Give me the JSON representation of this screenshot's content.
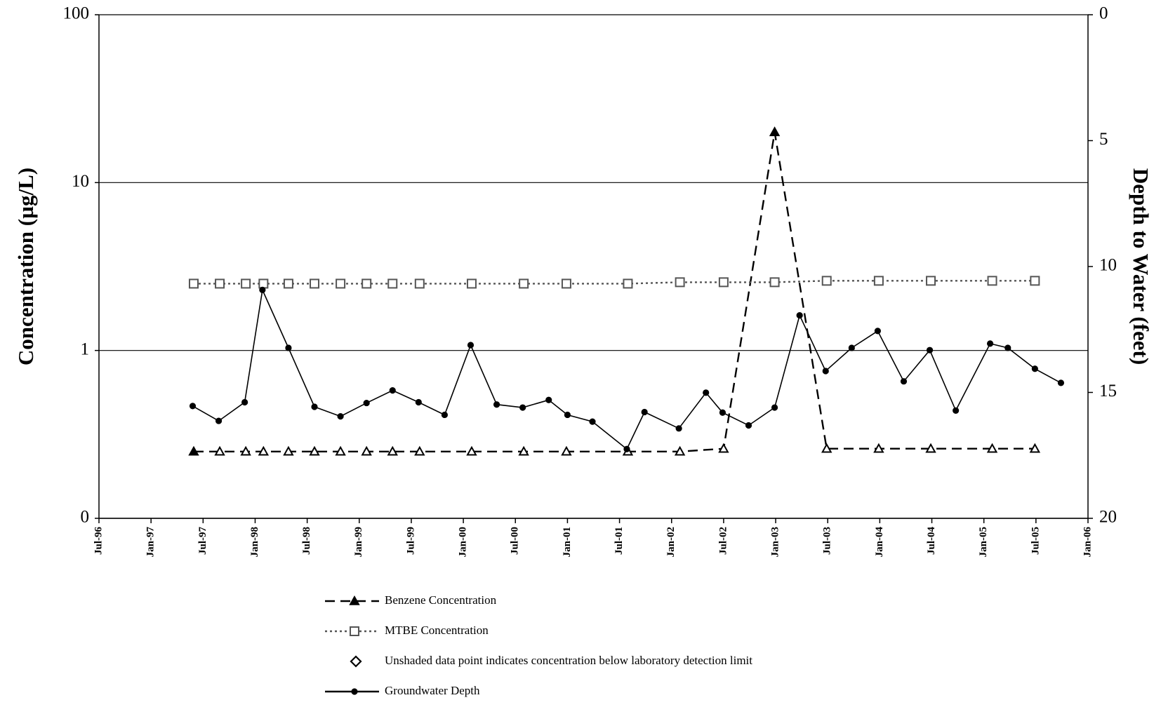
{
  "chart_data": {
    "type": "line",
    "y_label": "Concentration (µg/L)",
    "y2_label": "Depth to Water (feet)",
    "log_y": true,
    "grid": true,
    "ylim": [
      0.1,
      100
    ],
    "yticks": [
      {
        "value": 0.1,
        "label": "0"
      },
      1,
      10,
      100
    ],
    "y2lim": [
      20,
      0
    ],
    "y2ticks": [
      0,
      5,
      10,
      15,
      20
    ],
    "xlim": [
      1996.5,
      2006.0
    ],
    "xticks": [
      {
        "value": 1996.5,
        "label": "Jul-96"
      },
      {
        "value": 1997.0,
        "label": "Jan-97"
      },
      {
        "value": 1997.5,
        "label": "Jul-97"
      },
      {
        "value": 1998.0,
        "label": "Jan-98"
      },
      {
        "value": 1998.5,
        "label": "Jul-98"
      },
      {
        "value": 1999.0,
        "label": "Jan-99"
      },
      {
        "value": 1999.5,
        "label": "Jul-99"
      },
      {
        "value": 2000.0,
        "label": "Jan-00"
      },
      {
        "value": 2000.5,
        "label": "Jul-00"
      },
      {
        "value": 2001.0,
        "label": "Jan-01"
      },
      {
        "value": 2001.5,
        "label": "Jul-01"
      },
      {
        "value": 2002.0,
        "label": "Jan-02"
      },
      {
        "value": 2002.5,
        "label": "Jul-02"
      },
      {
        "value": 2003.0,
        "label": "Jan-03"
      },
      {
        "value": 2003.5,
        "label": "Jul-03"
      },
      {
        "value": 2004.0,
        "label": "Jan-04"
      },
      {
        "value": 2004.5,
        "label": "Jul-04"
      },
      {
        "value": 2005.0,
        "label": "Jan-05"
      },
      {
        "value": 2005.5,
        "label": "Jul-05"
      },
      {
        "value": 2006.0,
        "label": "Jan-06"
      }
    ],
    "note": "Unshaded data point indicates concentration below laboratory detection limit",
    "series": [
      {
        "name": "Benzene Concentration",
        "color": "#000000",
        "dash": "14 8",
        "marker": "triangle",
        "x": [
          1997.41,
          1997.66,
          1997.91,
          1998.08,
          1998.32,
          1998.57,
          1998.82,
          1999.07,
          1999.32,
          1999.58,
          2000.08,
          2000.58,
          2000.99,
          2001.58,
          2002.08,
          2002.5,
          2002.99,
          2003.49,
          2003.99,
          2004.49,
          2005.08,
          2005.49
        ],
        "values": [
          0.25,
          0.25,
          0.25,
          0.25,
          0.25,
          0.25,
          0.25,
          0.25,
          0.25,
          0.25,
          0.25,
          0.25,
          0.25,
          0.25,
          0.25,
          0.26,
          20,
          0.26,
          0.26,
          0.26,
          0.26,
          0.26
        ],
        "filled": [
          true,
          false,
          false,
          false,
          false,
          false,
          false,
          false,
          false,
          false,
          false,
          false,
          false,
          false,
          false,
          false,
          true,
          false,
          false,
          false,
          false,
          false
        ]
      },
      {
        "name": "MTBE Concentration",
        "color": "#555555",
        "dash": "3 4",
        "marker": "square",
        "x": [
          1997.41,
          1997.66,
          1997.91,
          1998.08,
          1998.32,
          1998.57,
          1998.82,
          1999.07,
          1999.32,
          1999.58,
          2000.08,
          2000.58,
          2000.99,
          2001.58,
          2002.08,
          2002.5,
          2002.99,
          2003.49,
          2003.99,
          2004.49,
          2005.08,
          2005.49
        ],
        "values": [
          2.5,
          2.5,
          2.5,
          2.5,
          2.5,
          2.5,
          2.5,
          2.5,
          2.5,
          2.5,
          2.5,
          2.5,
          2.5,
          2.5,
          2.55,
          2.55,
          2.55,
          2.6,
          2.6,
          2.6,
          2.6,
          2.6
        ],
        "filled": [
          false,
          false,
          false,
          false,
          false,
          false,
          false,
          false,
          false,
          false,
          false,
          false,
          false,
          false,
          false,
          false,
          false,
          false,
          false,
          false,
          false,
          false
        ]
      },
      {
        "name": "Groundwater Depth",
        "color": "#000000",
        "dash": "none",
        "marker": "circle",
        "axis": "y2",
        "x": [
          1997.4,
          1997.65,
          1997.9,
          1998.07,
          1998.32,
          1998.57,
          1998.82,
          1999.07,
          1999.32,
          1999.57,
          1999.82,
          2000.07,
          2000.32,
          2000.57,
          2000.82,
          2001.0,
          2001.24,
          2001.57,
          2001.74,
          2002.07,
          2002.33,
          2002.49,
          2002.74,
          2002.99,
          2003.23,
          2003.48,
          2003.73,
          2003.98,
          2004.23,
          2004.48,
          2004.73,
          2005.06,
          2005.23,
          2005.49,
          2005.74
        ],
        "values": [
          15.54,
          16.13,
          15.39,
          10.93,
          13.23,
          15.57,
          15.95,
          15.42,
          14.92,
          15.39,
          15.89,
          13.12,
          15.48,
          15.6,
          15.3,
          15.89,
          16.16,
          17.25,
          15.78,
          16.43,
          15.01,
          15.8,
          16.31,
          15.6,
          11.94,
          14.15,
          13.23,
          12.56,
          14.56,
          13.32,
          15.72,
          13.06,
          13.23,
          14.06,
          14.62
        ],
        "filled": [
          true,
          true,
          true,
          true,
          true,
          true,
          true,
          true,
          true,
          true,
          true,
          true,
          true,
          true,
          true,
          true,
          true,
          true,
          true,
          true,
          true,
          true,
          true,
          true,
          true,
          true,
          true,
          true,
          true,
          true,
          true,
          true,
          true,
          true,
          true
        ]
      }
    ]
  }
}
